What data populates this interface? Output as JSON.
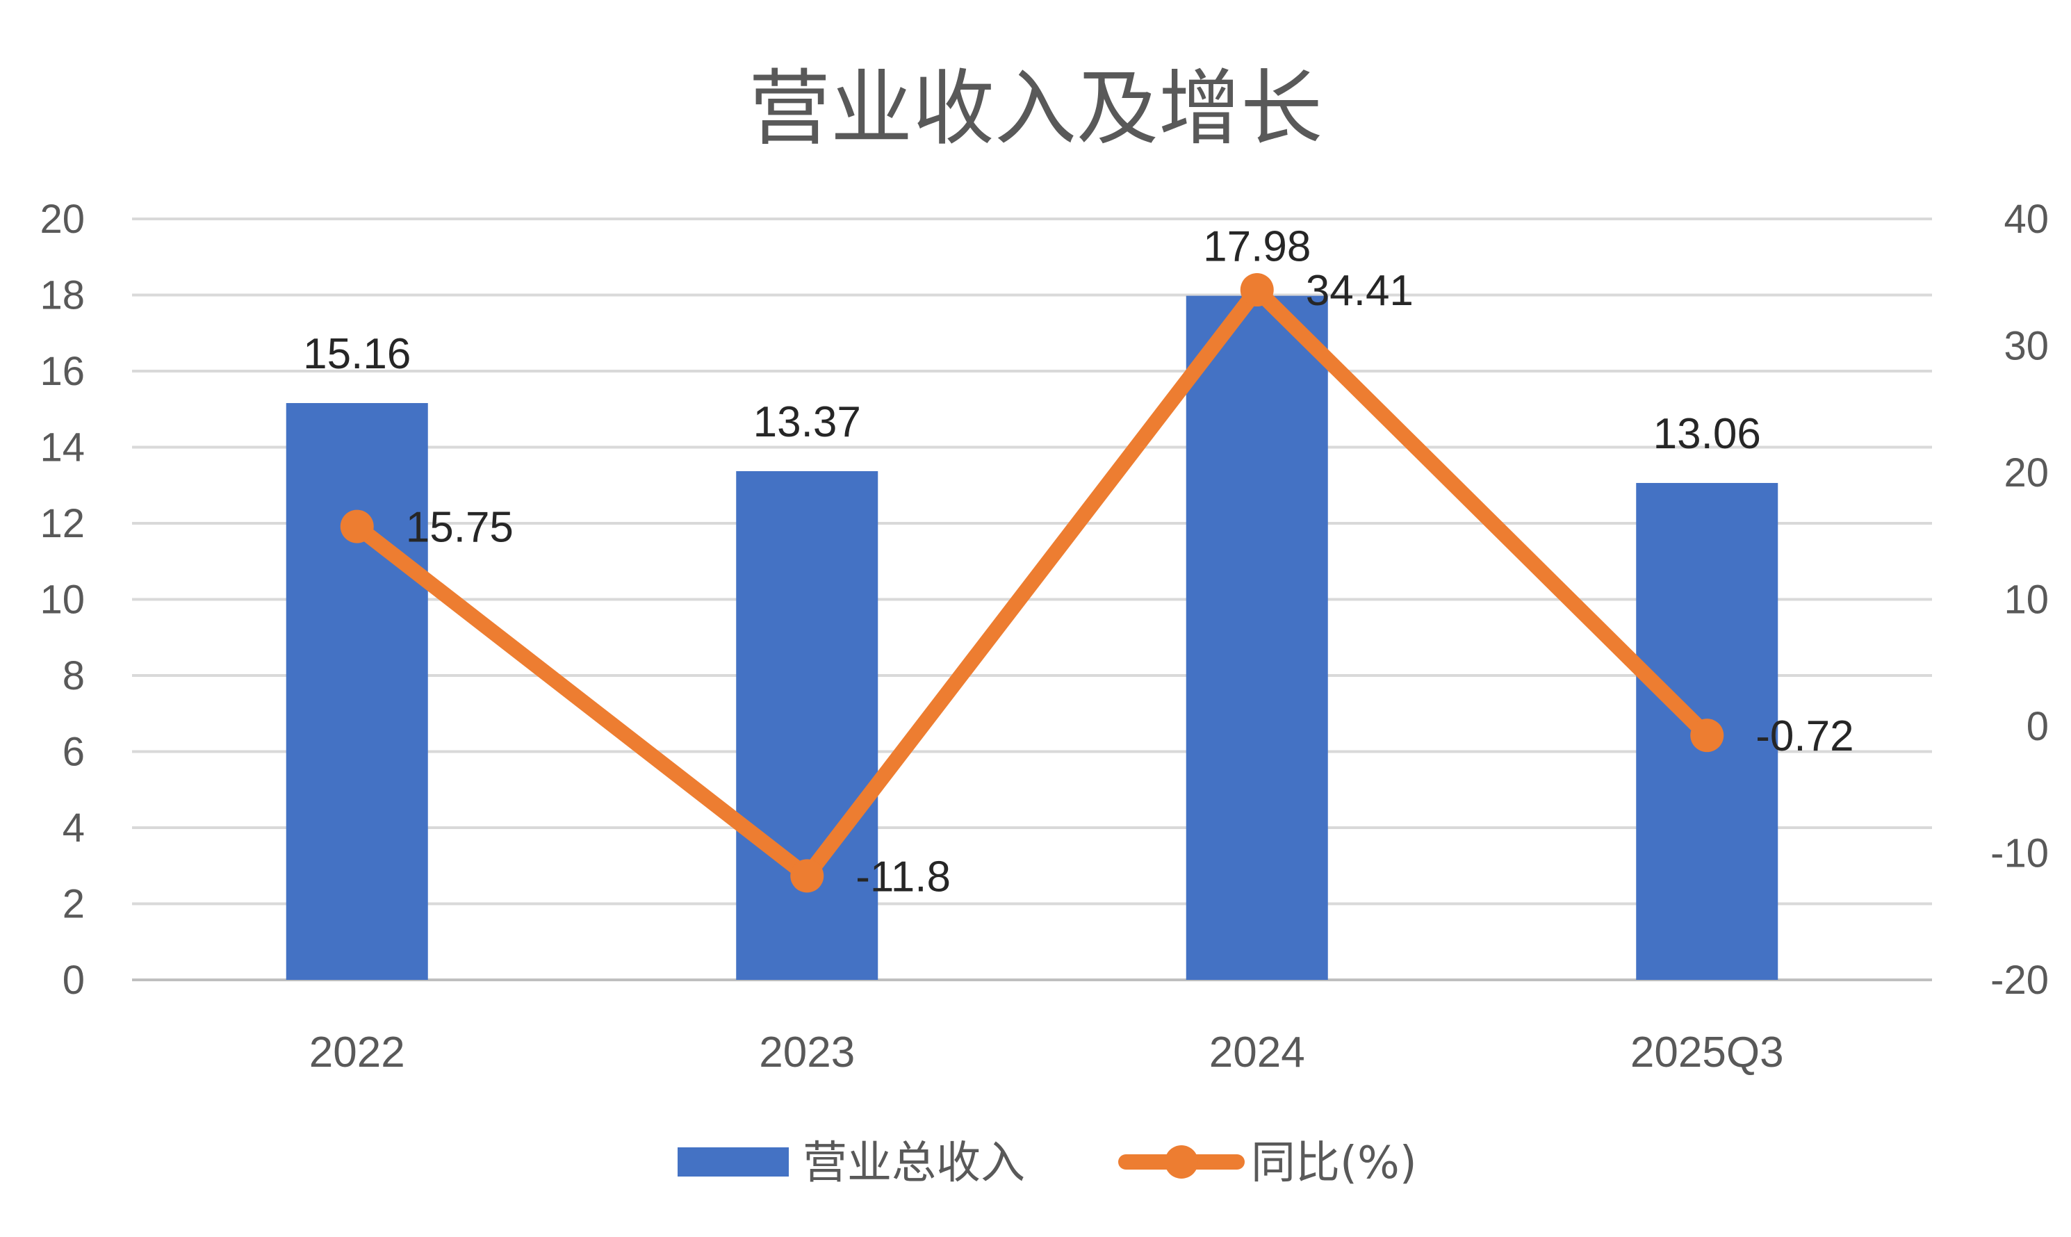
{
  "chart_data": {
    "type": "bar",
    "title": "营业收入及增长",
    "categories": [
      "2022",
      "2023",
      "2024",
      "2025Q3"
    ],
    "series": [
      {
        "name": "营业总收入",
        "type": "bar",
        "axis": "left",
        "values": [
          15.16,
          13.37,
          17.98,
          13.06
        ],
        "labels": [
          "15.16",
          "13.37",
          "17.98",
          "13.06"
        ],
        "color": "#4472C4"
      },
      {
        "name": "同比(%)",
        "type": "line",
        "axis": "right",
        "values": [
          15.75,
          -11.8,
          34.41,
          -0.72
        ],
        "labels": [
          "15.75",
          "-11.8",
          "34.41",
          "-0.72"
        ],
        "color": "#ED7D31"
      }
    ],
    "y_left": {
      "min": 0,
      "max": 20,
      "step": 2,
      "ticks": [
        "0",
        "2",
        "4",
        "6",
        "8",
        "10",
        "12",
        "14",
        "16",
        "18",
        "20"
      ]
    },
    "y_right": {
      "min": -20,
      "max": 40,
      "step": 10,
      "ticks": [
        "-20",
        "-10",
        "0",
        "10",
        "20",
        "30",
        "40"
      ]
    },
    "grid": true,
    "legend_position": "bottom"
  }
}
